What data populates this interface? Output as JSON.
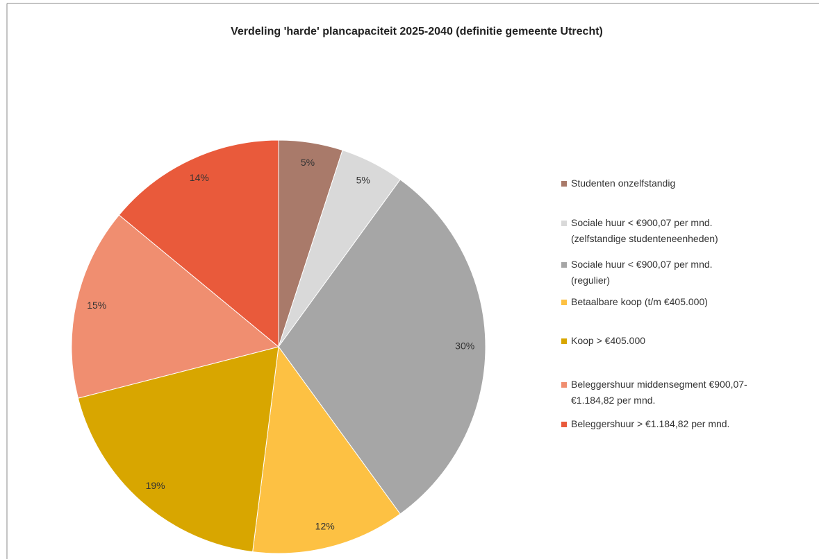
{
  "chart_data": {
    "type": "pie",
    "title": "Verdeling 'harde' plancapaciteit 2025-2040 (definitie gemeente Utrecht)",
    "categories": [
      "Studenten onzelfstandig",
      "Sociale huur < €900,07 per mnd.\n(zelfstandige studenteneenheden)",
      "Sociale huur < €900,07 per mnd.\n(regulier)",
      "Betaalbare koop (t/m €405.000)",
      "Koop  > €405.000",
      "Beleggershuur middensegment €900,07-\n€1.184,82 per mnd.",
      "Beleggershuur > €1.184,82  per mnd."
    ],
    "values": [
      5,
      5,
      30,
      12,
      19,
      15,
      14
    ],
    "value_labels": [
      "5%",
      "5%",
      "30%",
      "12%",
      "19%",
      "15%",
      "14%"
    ],
    "colors": [
      "#a97a6a",
      "#d9d9d9",
      "#a6a6a6",
      "#fdc143",
      "#d8a600",
      "#f08e70",
      "#e95a3b"
    ],
    "legend": "right"
  }
}
